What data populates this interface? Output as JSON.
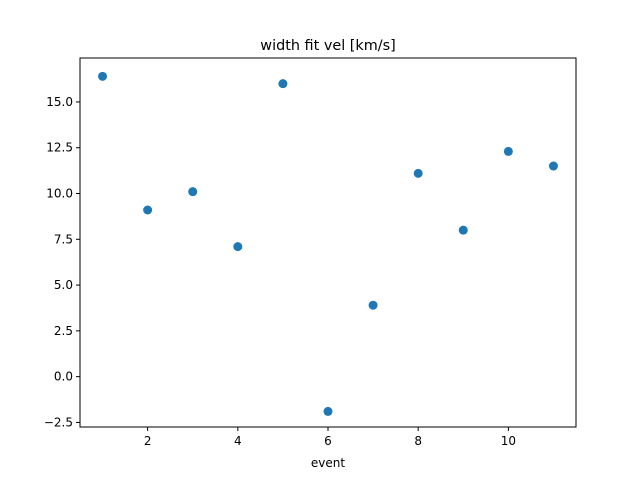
{
  "chart_data": {
    "type": "scatter",
    "title": "width fit vel [km/s]",
    "xlabel": "event",
    "ylabel": "",
    "xlim": [
      0.5,
      11.5
    ],
    "ylim": [
      -2.75,
      17.4
    ],
    "xticks": [
      2,
      4,
      6,
      8,
      10
    ],
    "yticks": [
      -2.5,
      0.0,
      2.5,
      5.0,
      7.5,
      10.0,
      12.5,
      15.0
    ],
    "ytick_labels": [
      "−2.5",
      "0.0",
      "2.5",
      "5.0",
      "7.5",
      "10.0",
      "12.5",
      "15.0"
    ],
    "grid": false,
    "marker_color": "#1f77b4",
    "points": [
      {
        "x": 1,
        "y": 16.4
      },
      {
        "x": 2,
        "y": 9.1
      },
      {
        "x": 3,
        "y": 10.1
      },
      {
        "x": 4,
        "y": 7.1
      },
      {
        "x": 5,
        "y": 16.0
      },
      {
        "x": 6,
        "y": -1.9
      },
      {
        "x": 7,
        "y": 3.9
      },
      {
        "x": 8,
        "y": 11.1
      },
      {
        "x": 9,
        "y": 8.0
      },
      {
        "x": 10,
        "y": 12.3
      },
      {
        "x": 11,
        "y": 11.5
      }
    ]
  }
}
